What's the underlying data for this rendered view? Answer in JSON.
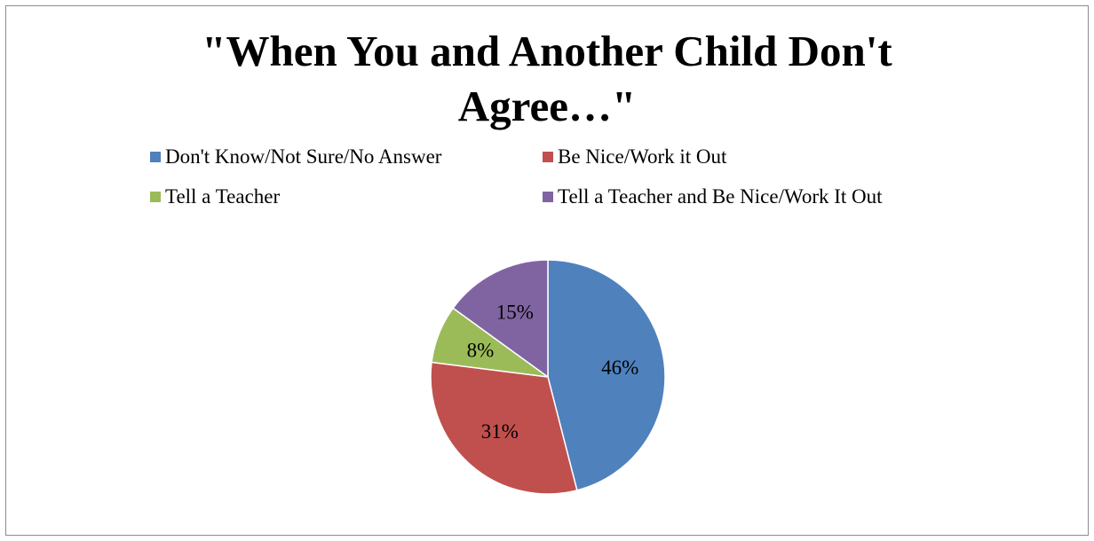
{
  "chart_data": {
    "type": "pie",
    "title": "\"When You and Another Child Don't Agree…\"",
    "title_lines": [
      "\"When You and Another Child Don't",
      "Agree…\""
    ],
    "legend_position": "top",
    "slices": [
      {
        "label": "Don't Know/Not Sure/No Answer",
        "value": 46,
        "display": "46%",
        "color": "#4f81bd"
      },
      {
        "label": "Be Nice/Work it Out",
        "value": 31,
        "display": "31%",
        "color": "#c0504d"
      },
      {
        "label": "Tell a Teacher",
        "value": 8,
        "display": "8%",
        "color": "#9bbb59"
      },
      {
        "label": "Tell a Teacher and Be Nice/Work It Out",
        "value": 15,
        "display": "15%",
        "color": "#8064a2"
      }
    ]
  }
}
